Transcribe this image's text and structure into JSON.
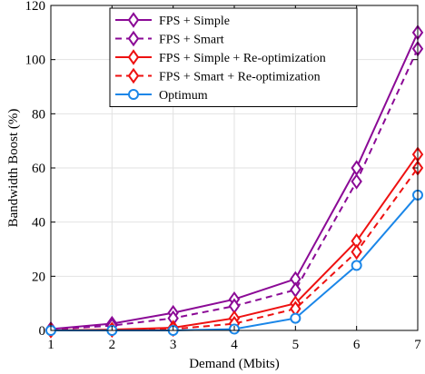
{
  "chart_data": {
    "type": "line",
    "xlabel": "Demand (Mbits)",
    "ylabel": "Bandwidth Boost (%)",
    "x": [
      1,
      2,
      3,
      4,
      5,
      6,
      7
    ],
    "xlim": [
      1,
      7
    ],
    "ylim": [
      0,
      120
    ],
    "xticks": [
      "1",
      "2",
      "3",
      "4",
      "5",
      "6",
      "7"
    ],
    "yticks": [
      "0",
      "20",
      "40",
      "60",
      "80",
      "100",
      "120"
    ],
    "grid": true,
    "legend_position": "top-left",
    "series": [
      {
        "name": "FPS + Simple",
        "color": "#8B0A96",
        "dash": "solid",
        "marker": "diamond",
        "values": [
          0.5,
          2.5,
          6.5,
          11.5,
          19,
          60,
          110
        ]
      },
      {
        "name": "FPS + Smart",
        "color": "#8B0A96",
        "dash": "dashed",
        "marker": "diamond",
        "values": [
          0.3,
          1.8,
          4.5,
          9,
          15,
          55,
          104
        ]
      },
      {
        "name": "FPS + Simple + Re-optimization",
        "color": "#EE1111",
        "dash": "solid",
        "marker": "diamond",
        "values": [
          0,
          0.3,
          1,
          4.5,
          10,
          33,
          65
        ]
      },
      {
        "name": "FPS + Smart + Re-optimization",
        "color": "#EE1111",
        "dash": "dashed",
        "marker": "diamond",
        "values": [
          0,
          0.2,
          0.5,
          2.5,
          8,
          29,
          60
        ]
      },
      {
        "name": "Optimum",
        "color": "#1A86E8",
        "dash": "solid",
        "marker": "circle",
        "values": [
          0,
          0,
          0,
          0.5,
          4.5,
          24,
          50
        ]
      }
    ]
  }
}
